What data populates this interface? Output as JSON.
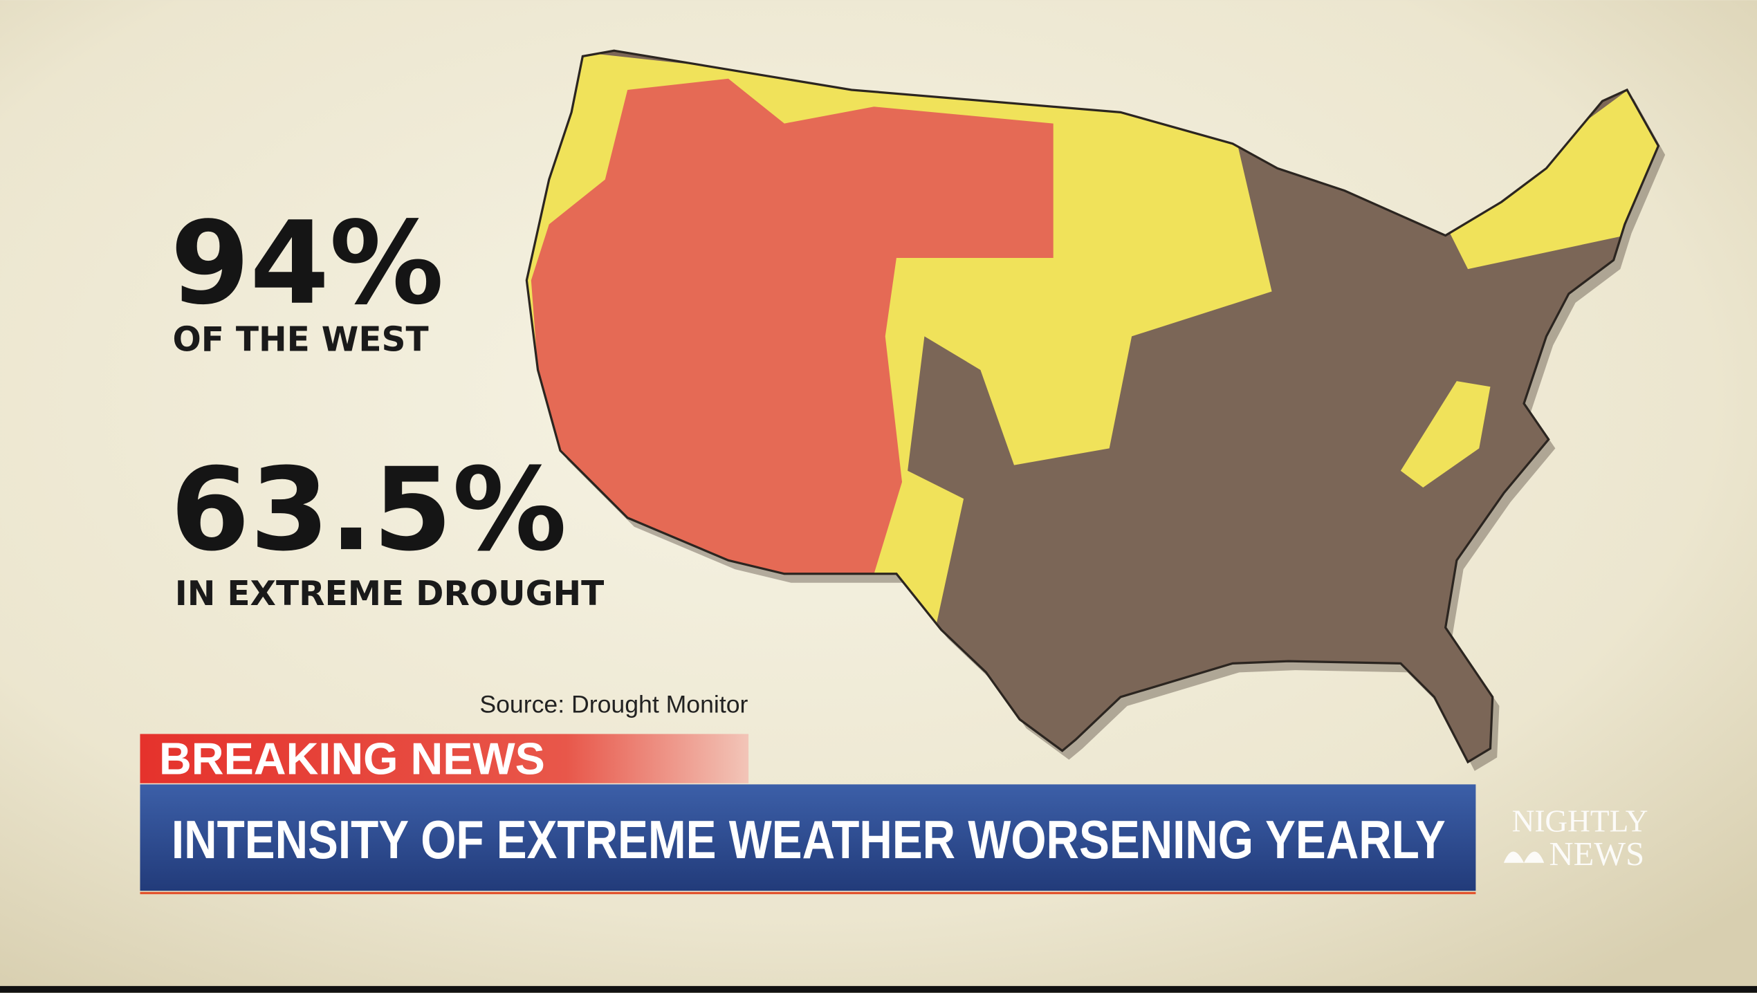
{
  "stats": [
    {
      "value": "94%",
      "label": "OF THE WEST"
    },
    {
      "value": "63.5%",
      "label": "IN EXTREME DROUGHT"
    }
  ],
  "source": "Source:  Drought Monitor",
  "lower_third": {
    "tag": "BREAKING NEWS",
    "headline": "INTENSITY OF EXTREME WEATHER WORSENING YEARLY"
  },
  "logo": {
    "line1": "NIGHTLY",
    "line2": "NEWS"
  }
}
